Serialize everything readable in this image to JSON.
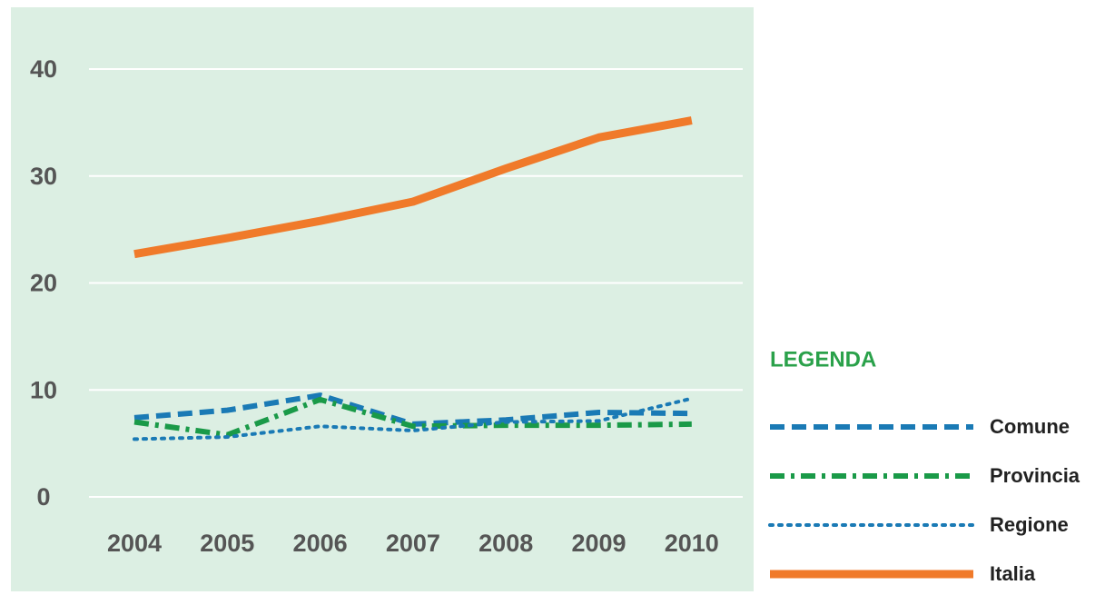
{
  "chart_data": {
    "type": "line",
    "legend_title": "LEGENDA",
    "categories": [
      "2004",
      "2005",
      "2006",
      "2007",
      "2008",
      "2009",
      "2010"
    ],
    "series": [
      {
        "name": "Comune",
        "color": "#1a7ab5",
        "dash": "dashed",
        "values": [
          7.4,
          8.1,
          9.5,
          6.8,
          7.2,
          7.9,
          7.8
        ]
      },
      {
        "name": "Provincia",
        "color": "#1a9a48",
        "dash": "dashdot",
        "values": [
          7.0,
          5.8,
          9.1,
          6.6,
          6.7,
          6.7,
          6.8
        ]
      },
      {
        "name": "Regione",
        "color": "#1a7ab5",
        "dash": "dotted",
        "values": [
          5.4,
          5.6,
          6.6,
          6.2,
          7.0,
          7.1,
          9.2
        ]
      },
      {
        "name": "Italia",
        "color": "#f07a2a",
        "dash": "solid",
        "values": [
          22.7,
          24.2,
          25.8,
          27.6,
          30.7,
          33.6,
          35.2
        ]
      }
    ],
    "ylim": [
      0,
      40
    ],
    "yticks": [
      0,
      10,
      20,
      30,
      40
    ],
    "grid": true,
    "background": "#dcefe3",
    "legend": "right"
  }
}
